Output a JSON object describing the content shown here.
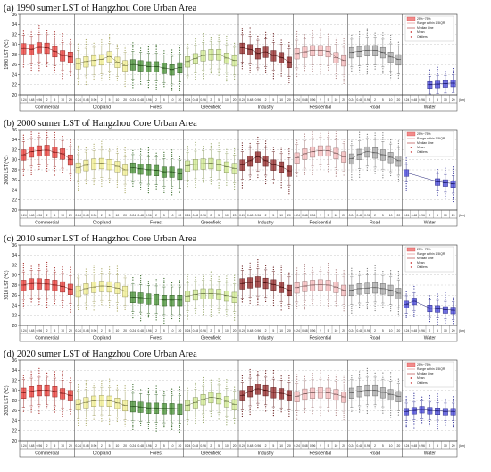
{
  "chart_data": {
    "type": "box",
    "ylabel": "LST (℃)",
    "yticks": [
      20,
      22,
      24,
      26,
      28,
      30,
      32,
      34,
      36
    ],
    "ylim": [
      20,
      36
    ],
    "x_unit": "(km)",
    "distances": [
      "0.24",
      "0.48",
      "0.96",
      "2",
      "5",
      "10",
      "20"
    ],
    "categories": [
      "Commercial",
      "Cropland",
      "Forest",
      "Greenfield",
      "Industry",
      "Residential",
      "Road",
      "Water"
    ],
    "colors": [
      "#e8302c",
      "#f1ee8c",
      "#3d8b2a",
      "#cfe98c",
      "#8b1a1a",
      "#f7b7b8",
      "#a6a6a6",
      "#3a3ad6"
    ],
    "legend": [
      "25%~75%",
      "Range within 1.5IQR",
      "Median Line",
      "Mean",
      "Outliers"
    ],
    "panels": [
      {
        "title": "(a) 1990 sumer LST of Hangzhou Core Urban Area",
        "ylabel_year": "1990",
        "medians": [
          [
            29.2,
            29.0,
            29.4,
            29.3,
            28.6,
            27.8,
            27.5
          ],
          [
            26.2,
            26.6,
            26.8,
            27.0,
            27.6,
            26.5,
            25.8
          ],
          [
            26.0,
            25.8,
            25.6,
            25.6,
            25.3,
            25.0,
            25.4
          ],
          [
            26.6,
            27.2,
            27.8,
            28.0,
            28.0,
            27.3,
            26.8
          ],
          [
            29.3,
            29.0,
            28.2,
            28.5,
            27.8,
            27.4,
            26.5
          ],
          [
            28.2,
            28.5,
            28.8,
            28.8,
            28.6,
            27.4,
            26.8
          ],
          [
            28.4,
            28.6,
            28.8,
            28.8,
            28.4,
            27.5,
            27.0
          ],
          [
            null,
            null,
            null,
            22.0,
            22.1,
            22.2,
            22.3
          ]
        ]
      },
      {
        "title": "(b) 2000 sumer LST of Hangzhou Core Urban Area",
        "ylabel_year": "2000",
        "medians": [
          [
            31.0,
            31.6,
            31.8,
            31.9,
            31.5,
            31.2,
            30.0
          ],
          [
            28.4,
            28.9,
            29.2,
            29.3,
            29.1,
            28.7,
            28.0
          ],
          [
            28.4,
            28.2,
            28.0,
            27.9,
            27.6,
            27.6,
            27.2
          ],
          [
            28.8,
            29.1,
            29.2,
            29.3,
            29.0,
            28.6,
            28.3
          ],
          [
            29.0,
            29.8,
            30.6,
            29.8,
            29.0,
            28.6,
            27.8
          ],
          [
            30.4,
            31.2,
            31.6,
            31.8,
            31.8,
            31.3,
            30.6
          ],
          [
            30.2,
            31.1,
            31.6,
            31.4,
            31.0,
            30.5,
            29.8
          ],
          [
            27.4,
            null,
            null,
            null,
            25.6,
            25.4,
            25.2
          ]
        ]
      },
      {
        "title": "(c) 2010 sumer LST of Hangzhou Core Urban Area",
        "ylabel_year": "2010",
        "medians": [
          [
            28.0,
            28.3,
            28.3,
            28.2,
            28.0,
            27.7,
            27.2
          ],
          [
            26.8,
            27.3,
            27.6,
            27.8,
            27.7,
            27.4,
            26.8
          ],
          [
            25.6,
            25.5,
            25.3,
            25.2,
            25.0,
            25.0,
            25.0
          ],
          [
            25.8,
            26.1,
            26.3,
            26.3,
            26.2,
            25.9,
            25.6
          ],
          [
            28.3,
            28.5,
            28.7,
            28.4,
            28.1,
            27.6,
            27.0
          ],
          [
            27.5,
            27.8,
            28.0,
            28.1,
            28.0,
            27.6,
            27.0
          ],
          [
            27.0,
            27.3,
            27.4,
            27.5,
            27.3,
            27.0,
            26.4
          ],
          [
            24.2,
            24.8,
            null,
            23.4,
            23.3,
            23.1,
            23.0
          ]
        ]
      },
      {
        "title": "(d) 2020 sumer LST of Hangzhou Core Urban Area",
        "ylabel_year": "2020",
        "medians": [
          [
            29.5,
            29.8,
            30.0,
            30.0,
            29.8,
            29.4,
            29.0
          ],
          [
            27.2,
            27.6,
            27.9,
            28.0,
            27.9,
            27.5,
            27.0
          ],
          [
            26.8,
            26.7,
            26.5,
            26.5,
            26.4,
            26.4,
            26.3
          ],
          [
            27.0,
            27.6,
            28.2,
            28.6,
            28.4,
            27.8,
            27.2
          ],
          [
            29.0,
            29.8,
            30.3,
            30.0,
            29.6,
            29.4,
            29.0
          ],
          [
            28.8,
            29.3,
            29.5,
            29.6,
            29.5,
            29.2,
            28.7
          ],
          [
            29.5,
            29.8,
            30.0,
            30.0,
            29.6,
            29.2,
            28.8
          ],
          [
            25.8,
            26.0,
            26.2,
            26.0,
            25.9,
            25.8,
            25.8
          ]
        ]
      }
    ]
  }
}
